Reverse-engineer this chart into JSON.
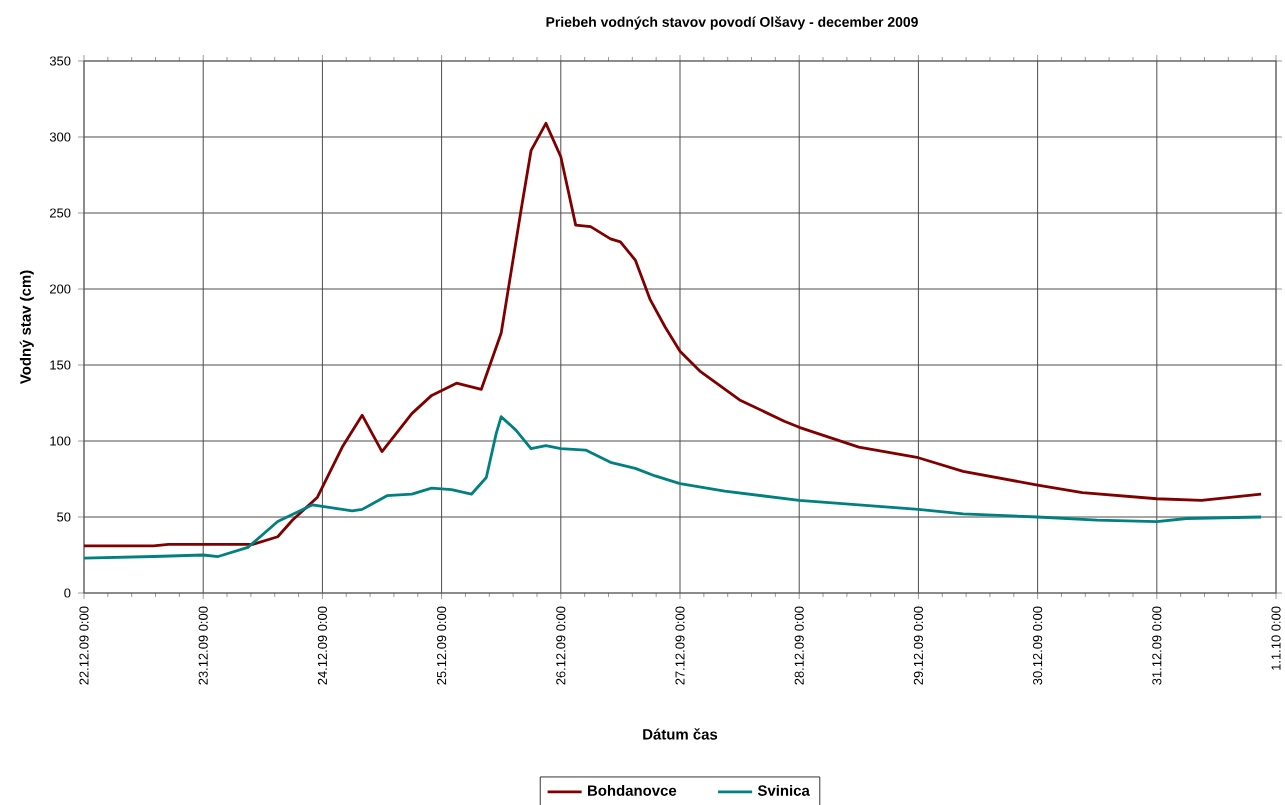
{
  "chart_data": {
    "type": "line",
    "title": "Priebeh vodných stavov povodí Olšavy  - december 2009",
    "xlabel": "Dátum čas",
    "ylabel": "Vodný stav (cm)",
    "xlim": [
      "2009-12-22T00:00",
      "2010-01-01T00:00"
    ],
    "xticks": [
      {
        "value": "2009-12-22T00:00",
        "label": "22.12.09 0:00"
      },
      {
        "value": "2009-12-23T00:00",
        "label": "23.12.09 0:00"
      },
      {
        "value": "2009-12-24T00:00",
        "label": "24.12.09 0:00"
      },
      {
        "value": "2009-12-25T00:00",
        "label": "25.12.09 0:00"
      },
      {
        "value": "2009-12-26T00:00",
        "label": "26.12.09 0:00"
      },
      {
        "value": "2009-12-27T00:00",
        "label": "27.12.09 0:00"
      },
      {
        "value": "2009-12-28T00:00",
        "label": "28.12.09 0:00"
      },
      {
        "value": "2009-12-29T00:00",
        "label": "29.12.09 0:00"
      },
      {
        "value": "2009-12-30T00:00",
        "label": "30.12.09 0:00"
      },
      {
        "value": "2009-12-31T00:00",
        "label": "31.12.09 0:00"
      },
      {
        "value": "2010-01-01T00:00",
        "label": "1.1.10 0:00"
      }
    ],
    "ylim": [
      0,
      350
    ],
    "yticks": [
      0,
      50,
      100,
      150,
      200,
      250,
      300,
      350
    ],
    "grid": true,
    "legend": "bottom",
    "marker": "none",
    "line_style": "solid",
    "series": [
      {
        "name": "Bohdanovce",
        "color": "#800000",
        "x": [
          "2009-12-22T00:00",
          "2009-12-22T14:00",
          "2009-12-22T17:00",
          "2009-12-23T10:00",
          "2009-12-23T15:00",
          "2009-12-23T18:00",
          "2009-12-23T23:00",
          "2009-12-24T04:00",
          "2009-12-24T08:00",
          "2009-12-24T12:00",
          "2009-12-24T18:00",
          "2009-12-24T22:00",
          "2009-12-25T03:00",
          "2009-12-25T08:00",
          "2009-12-25T12:00",
          "2009-12-25T16:00",
          "2009-12-25T18:00",
          "2009-12-25T21:00",
          "2009-12-26T00:00",
          "2009-12-26T03:00",
          "2009-12-26T06:00",
          "2009-12-26T10:00",
          "2009-12-26T12:00",
          "2009-12-26T15:00",
          "2009-12-26T18:00",
          "2009-12-26T21:00",
          "2009-12-27T00:00",
          "2009-12-27T04:00",
          "2009-12-27T12:00",
          "2009-12-27T21:00",
          "2009-12-28T00:00",
          "2009-12-28T12:00",
          "2009-12-29T00:00",
          "2009-12-29T09:00",
          "2009-12-30T00:00",
          "2009-12-30T09:00",
          "2009-12-31T00:00",
          "2009-12-31T09:00",
          "2009-12-31T21:00"
        ],
        "values": [
          31,
          31,
          32,
          32,
          37,
          48,
          63,
          96,
          117,
          93,
          118,
          130,
          138,
          134,
          171,
          252,
          291,
          309,
          287,
          242,
          241,
          233,
          231,
          219,
          193,
          175,
          159,
          146,
          127,
          113,
          109,
          96,
          89,
          80,
          71,
          66,
          62,
          61,
          65
        ]
      },
      {
        "name": "Svinica",
        "color": "#008080",
        "x": [
          "2009-12-22T00:00",
          "2009-12-22T14:00",
          "2009-12-23T00:00",
          "2009-12-23T03:00",
          "2009-12-23T09:00",
          "2009-12-23T15:00",
          "2009-12-23T22:00",
          "2009-12-24T02:00",
          "2009-12-24T06:00",
          "2009-12-24T08:00",
          "2009-12-24T13:00",
          "2009-12-24T18:00",
          "2009-12-24T22:00",
          "2009-12-25T02:00",
          "2009-12-25T06:00",
          "2009-12-25T09:00",
          "2009-12-25T11:00",
          "2009-12-25T12:00",
          "2009-12-25T15:00",
          "2009-12-25T18:00",
          "2009-12-25T21:00",
          "2009-12-26T00:00",
          "2009-12-26T05:00",
          "2009-12-26T10:00",
          "2009-12-26T15:00",
          "2009-12-26T19:00",
          "2009-12-27T00:00",
          "2009-12-27T09:00",
          "2009-12-28T00:00",
          "2009-12-28T12:00",
          "2009-12-29T00:00",
          "2009-12-29T09:00",
          "2009-12-30T00:00",
          "2009-12-30T12:00",
          "2009-12-31T00:00",
          "2009-12-31T06:00",
          "2009-12-31T21:00"
        ],
        "values": [
          23,
          24,
          25,
          24,
          30,
          47,
          58,
          56,
          54,
          55,
          64,
          65,
          69,
          68,
          65,
          76,
          105,
          116,
          107,
          95,
          97,
          95,
          94,
          86,
          82,
          77,
          72,
          67,
          61,
          58,
          55,
          52,
          50,
          48,
          47,
          49,
          50
        ]
      }
    ]
  }
}
